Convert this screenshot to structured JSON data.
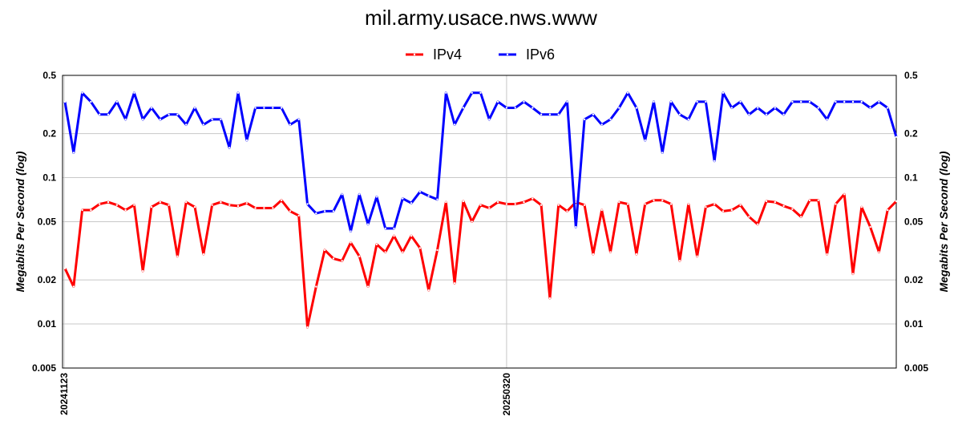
{
  "chart_data": {
    "type": "line",
    "title": "mil.army.usace.nws.www",
    "ylabel": "Megabits Per Second (log)",
    "yscale": "log",
    "ylim": [
      0.005,
      0.5
    ],
    "yticks": [
      0.5,
      0.2,
      0.1,
      0.05,
      0.02,
      0.01,
      0.005
    ],
    "ytick_labels": [
      "0.5",
      "0.2",
      "0.1",
      "0.05",
      "0.02",
      "0.01",
      "0.005"
    ],
    "x_tick_labels": [
      {
        "index": 0,
        "label": "20241123"
      },
      {
        "index": 51,
        "label": "20250320"
      }
    ],
    "grid": true,
    "legend": "top-center",
    "series": [
      {
        "name": "IPv4",
        "color": "#ff0000",
        "values": [
          0.024,
          0.018,
          0.06,
          0.06,
          0.066,
          0.068,
          0.065,
          0.06,
          0.065,
          0.023,
          0.063,
          0.068,
          0.065,
          0.029,
          0.068,
          0.063,
          0.03,
          0.065,
          0.068,
          0.065,
          0.064,
          0.067,
          0.062,
          0.062,
          0.062,
          0.07,
          0.059,
          0.055,
          0.0095,
          0.018,
          0.032,
          0.028,
          0.027,
          0.036,
          0.029,
          0.018,
          0.035,
          0.031,
          0.04,
          0.031,
          0.04,
          0.033,
          0.017,
          0.032,
          0.068,
          0.019,
          0.069,
          0.05,
          0.065,
          0.062,
          0.068,
          0.066,
          0.066,
          0.068,
          0.072,
          0.065,
          0.015,
          0.065,
          0.059,
          0.068,
          0.065,
          0.03,
          0.06,
          0.031,
          0.068,
          0.066,
          0.03,
          0.066,
          0.07,
          0.07,
          0.066,
          0.027,
          0.066,
          0.029,
          0.063,
          0.066,
          0.059,
          0.06,
          0.065,
          0.054,
          0.048,
          0.069,
          0.068,
          0.064,
          0.061,
          0.054,
          0.07,
          0.07,
          0.03,
          0.066,
          0.077,
          0.022,
          0.063,
          0.046,
          0.031,
          0.06,
          0.069
        ]
      },
      {
        "name": "IPv6",
        "color": "#0000ff",
        "values": [
          0.33,
          0.148,
          0.38,
          0.33,
          0.27,
          0.27,
          0.33,
          0.25,
          0.38,
          0.25,
          0.3,
          0.25,
          0.27,
          0.27,
          0.23,
          0.3,
          0.23,
          0.25,
          0.25,
          0.16,
          0.38,
          0.18,
          0.3,
          0.3,
          0.3,
          0.3,
          0.23,
          0.25,
          0.066,
          0.057,
          0.059,
          0.059,
          0.077,
          0.043,
          0.077,
          0.048,
          0.074,
          0.045,
          0.045,
          0.072,
          0.067,
          0.08,
          0.075,
          0.071,
          0.38,
          0.23,
          0.3,
          0.38,
          0.38,
          0.25,
          0.33,
          0.3,
          0.3,
          0.33,
          0.3,
          0.27,
          0.27,
          0.27,
          0.33,
          0.046,
          0.25,
          0.27,
          0.23,
          0.25,
          0.3,
          0.38,
          0.3,
          0.18,
          0.33,
          0.148,
          0.33,
          0.27,
          0.25,
          0.33,
          0.33,
          0.13,
          0.38,
          0.3,
          0.33,
          0.27,
          0.3,
          0.27,
          0.3,
          0.27,
          0.33,
          0.33,
          0.33,
          0.3,
          0.25,
          0.33,
          0.33,
          0.33,
          0.33,
          0.3,
          0.33,
          0.3,
          0.19
        ]
      }
    ]
  }
}
